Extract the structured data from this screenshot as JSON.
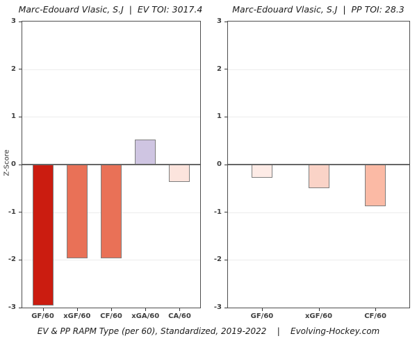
{
  "figure": {
    "caption": "EV & PP RAPM Type (per 60), Standardized, 2019-2022    |    Evolving-Hockey.com"
  },
  "chart_data": [
    {
      "type": "bar",
      "title": "Marc-Edouard Vlasic, S.J  |  EV TOI: 3017.4",
      "ylabel": "Z-Score",
      "xlabel": "",
      "categories": [
        "GF/60",
        "xGF/60",
        "CF/60",
        "xGA/60",
        "CA/60"
      ],
      "values": [
        -2.95,
        -1.97,
        -1.96,
        0.52,
        -0.36
      ],
      "bar_colors": [
        "#cb1c10",
        "#e97157",
        "#e97157",
        "#cfc5e2",
        "#fce4dd"
      ],
      "bar_outline_color": "#7d7d7d",
      "ylim": [
        -3,
        3
      ],
      "yticks": [
        3,
        2,
        1,
        0,
        -1,
        -2,
        -3
      ],
      "grid": "major horizontal only",
      "zero_line_color": "#666666",
      "panel_border_color": "#4d4d4d",
      "legend": "none"
    },
    {
      "type": "bar",
      "title": "Marc-Edouard Vlasic, S.J  |  PP TOI: 28.3",
      "ylabel": "",
      "xlabel": "",
      "categories": [
        "GF/60",
        "xGF/60",
        "CF/60"
      ],
      "values": [
        -0.28,
        -0.5,
        -0.88
      ],
      "bar_colors": [
        "#fdebe6",
        "#fad3c7",
        "#fbbaa5"
      ],
      "bar_outline_color": "#7d7d7d",
      "ylim": [
        -3,
        3
      ],
      "yticks": [
        3,
        2,
        1,
        0,
        -1,
        -2,
        -3
      ],
      "grid": "major horizontal only",
      "zero_line_color": "#666666",
      "panel_border_color": "#4d4d4d",
      "legend": "none"
    }
  ]
}
